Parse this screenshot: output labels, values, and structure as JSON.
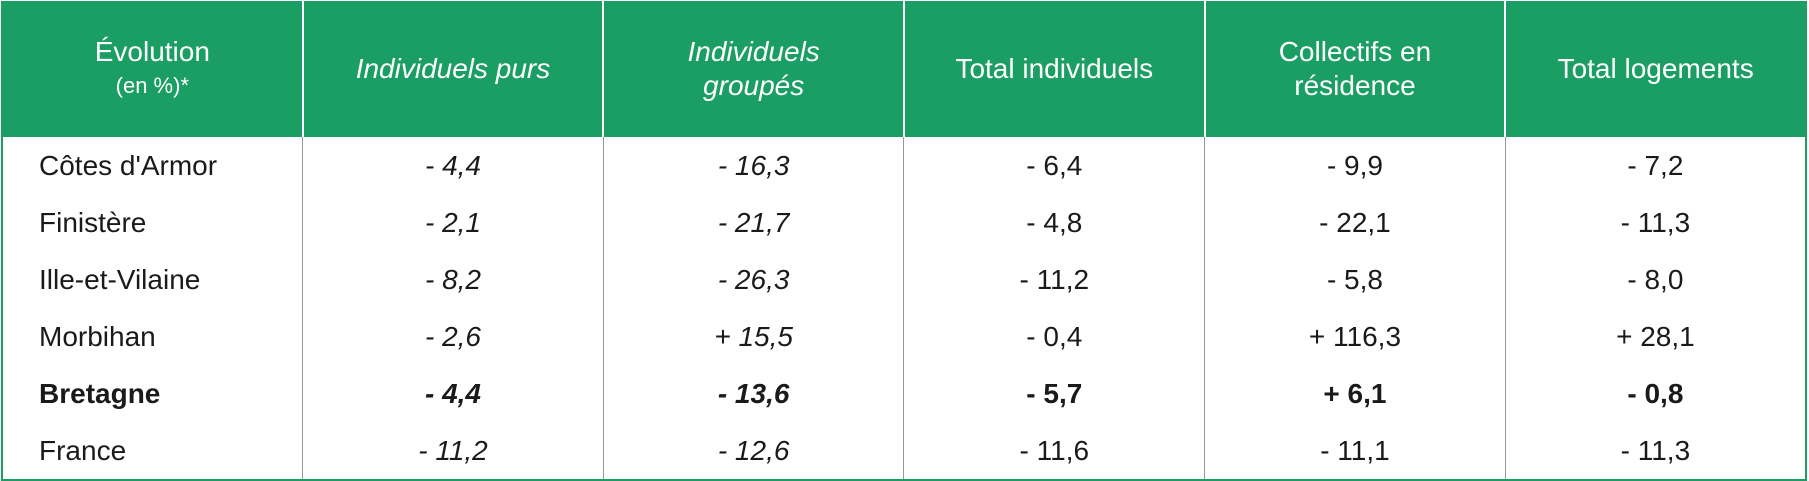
{
  "table": {
    "header_first": {
      "title": "Évolution",
      "unit": "(en %)*"
    },
    "header": [
      "Individuels purs",
      "Individuels\ngroupés",
      "Total individuels",
      "Collectifs en\nrésidence",
      "Total logements"
    ],
    "italic_columns": [
      0,
      1
    ],
    "bold_row": 4,
    "rows": [
      {
        "label": "Côtes d'Armor",
        "values": [
          "- 4,4",
          "- 16,3",
          "- 6,4",
          "- 9,9",
          "- 7,2"
        ]
      },
      {
        "label": "Finistère",
        "values": [
          "- 2,1",
          "- 21,7",
          "- 4,8",
          "- 22,1",
          "- 11,3"
        ]
      },
      {
        "label": "Ille-et-Vilaine",
        "values": [
          "- 8,2",
          "- 26,3",
          "- 11,2",
          "- 5,8",
          "- 8,0"
        ]
      },
      {
        "label": "Morbihan",
        "values": [
          "- 2,6",
          "+ 15,5",
          "- 0,4",
          "+ 116,3",
          "+ 28,1"
        ]
      },
      {
        "label": "Bretagne",
        "values": [
          "- 4,4",
          "- 13,6",
          "- 5,7",
          "+ 6,1",
          "- 0,8"
        ]
      },
      {
        "label": "France",
        "values": [
          "- 11,2",
          "- 12,6",
          "- 11,6",
          "- 11,1",
          "- 11,3"
        ]
      }
    ]
  }
}
